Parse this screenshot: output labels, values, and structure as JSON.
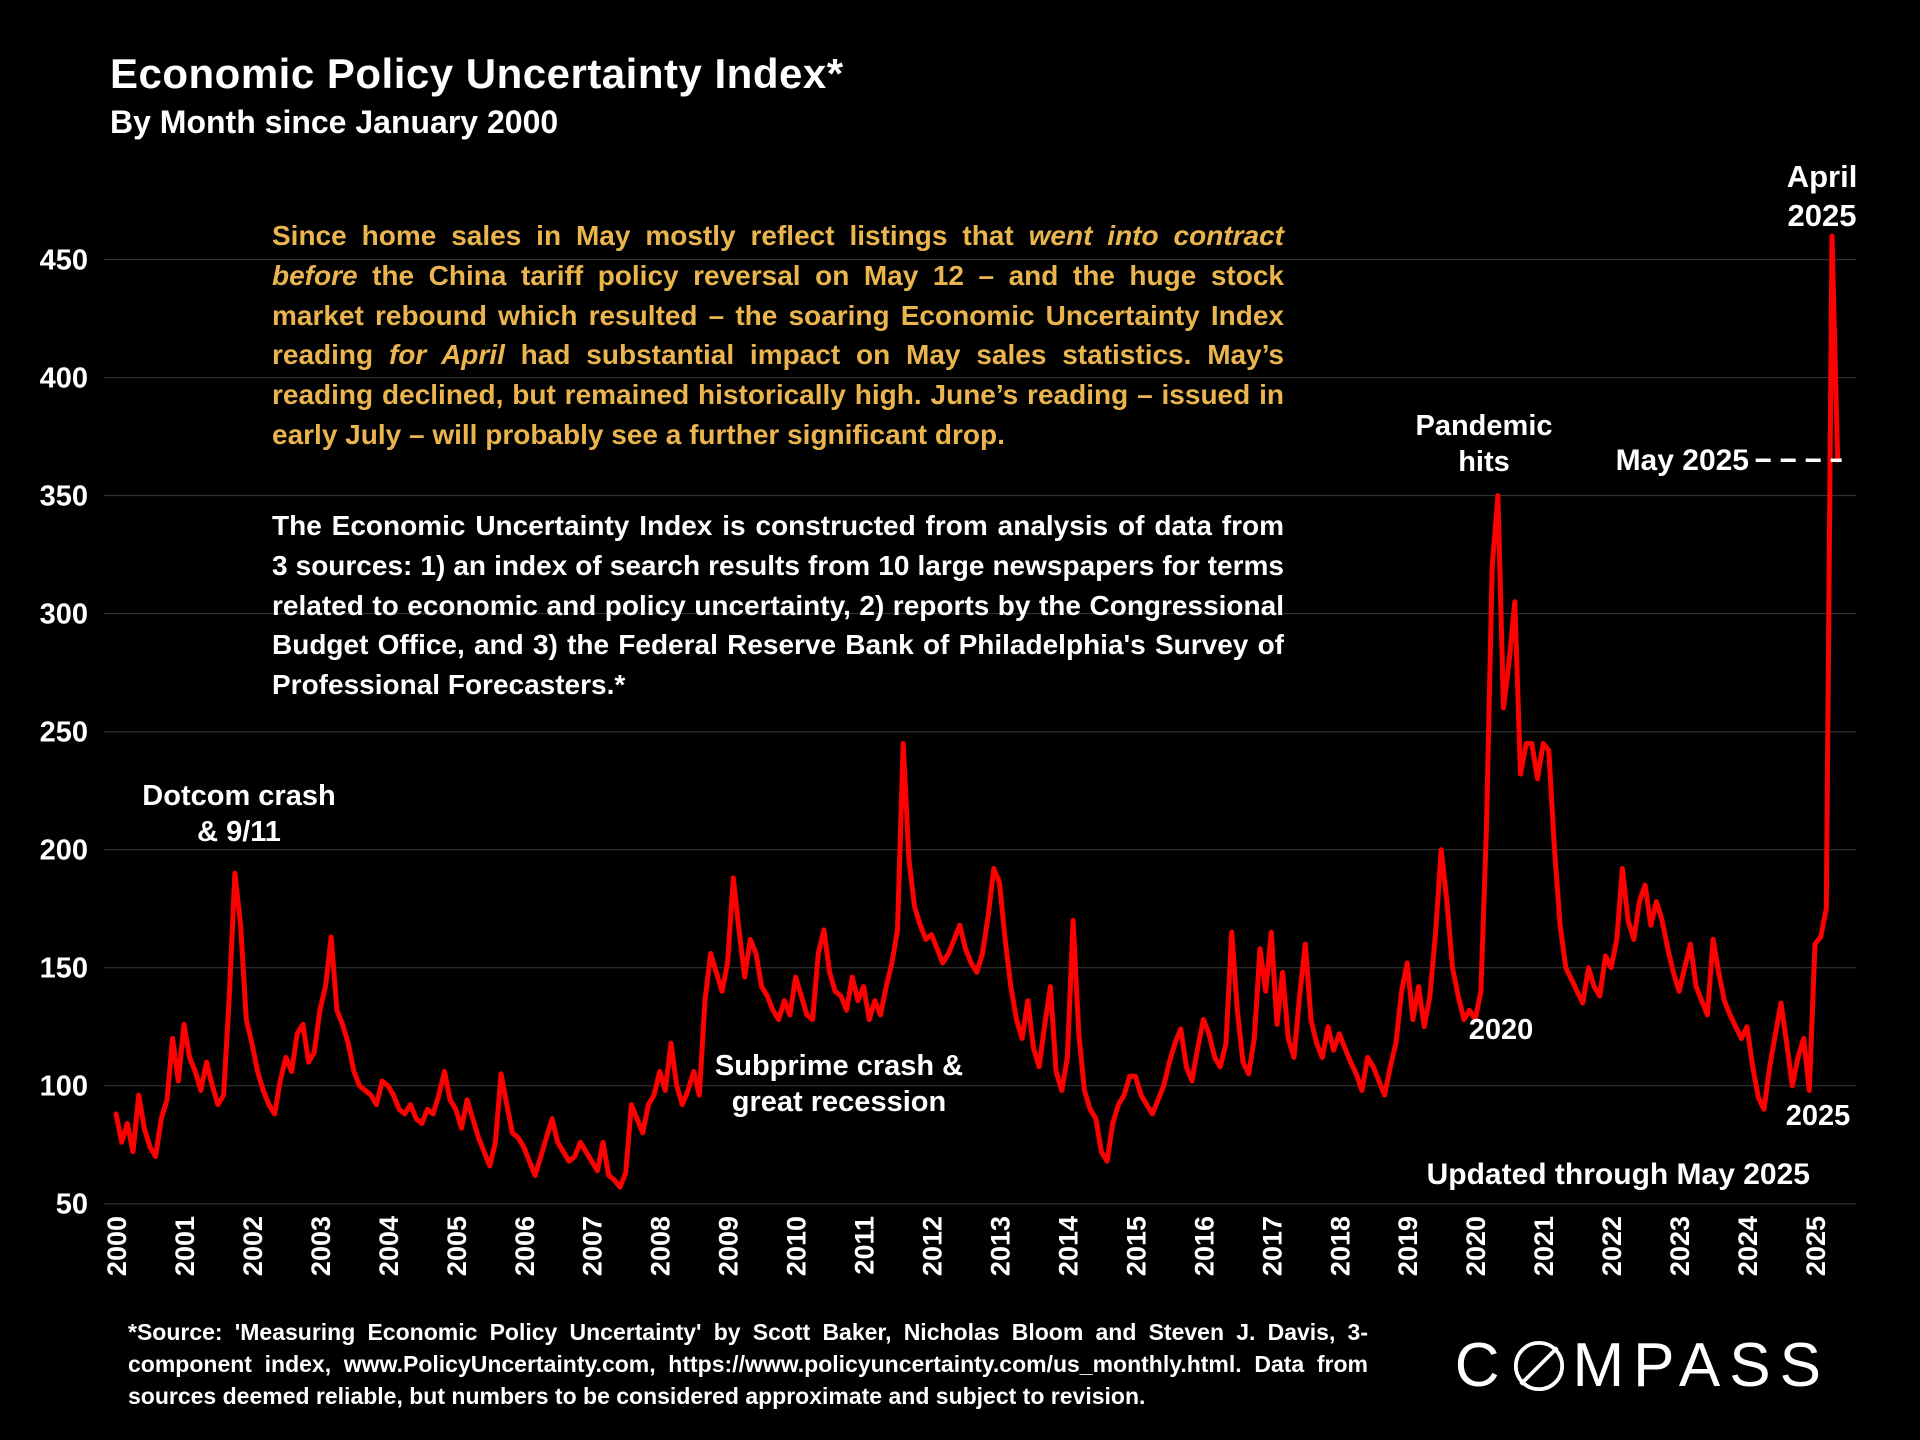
{
  "header": {
    "title": "Economic Policy Uncertainty Index*",
    "subtitle": "By Month since January 2000"
  },
  "commentary": {
    "segments": [
      {
        "text": "Since home sales in May mostly reflect listings that ",
        "italic": false
      },
      {
        "text": "went into contract before",
        "italic": true
      },
      {
        "text": " the China tariff policy reversal on May 12 – and the huge stock market rebound which resulted – the soaring Economic Uncertainty Index  reading ",
        "italic": false
      },
      {
        "text": "for April",
        "italic": true
      },
      {
        "text": " had substantial impact on May sales statistics. May’s reading declined, but remained historically high. June’s reading – issued in early July – will probably see a further significant drop.",
        "italic": false
      }
    ]
  },
  "methodology": {
    "text": "The Economic Uncertainty Index is constructed from analysis of data from 3 sources:  1) an index of search results from 10 large newspapers for terms related to economic and policy uncertainty, 2) reports by the Congressional Budget Office, and 3) the Federal Reserve Bank of Philadelphia's Survey of Professional Forecasters.*"
  },
  "annotations": {
    "dotcom": "Dotcom crash\n& 9/11",
    "subprime": "Subprime crash &\ngreat recession",
    "pandemic": "Pandemic\nhits",
    "april_2025": "April\n2025",
    "may_2025": "May 2025",
    "year_2020": "2020",
    "year_2025": "2025",
    "updated": "Updated through May 2025"
  },
  "footer": {
    "source": "*Source: 'Measuring Economic Policy Uncertainty' by Scott Baker, Nicholas Bloom and Steven J. Davis, 3-component index, www.PolicyUncertainty.com, https://www.policyuncertainty.com/us_monthly.html. Data from sources deemed reliable, but numbers to be considered approximate and subject to revision."
  },
  "logo": {
    "brand": "COMPASS",
    "left": "C",
    "right": "MPASS"
  },
  "chart_data": {
    "type": "line",
    "title": "Economic Policy Uncertainty Index*",
    "subtitle": "By Month since January 2000",
    "x_start": "2000-01",
    "x_end": "2025-05",
    "x_tick_labels": [
      "2000",
      "2001",
      "2002",
      "2003",
      "2004",
      "2005",
      "2006",
      "2007",
      "2008",
      "2009",
      "2010",
      "2011",
      "2012",
      "2013",
      "2014",
      "2015",
      "2016",
      "2017",
      "2018",
      "2019",
      "2020",
      "2021",
      "2022",
      "2023",
      "2024",
      "2025"
    ],
    "y_ticks": [
      50,
      100,
      150,
      200,
      250,
      300,
      350,
      400,
      450
    ],
    "ylim": [
      50,
      480
    ],
    "grid": true,
    "legend": "none",
    "colors": {
      "background": "#000000",
      "line": "#FE0000",
      "grid": "#3a3a3a",
      "text": "#FFFFFF",
      "accent_gold": "#EAB54E"
    },
    "notable_points": {
      "dotcom_911_peak": 190,
      "debt_ceiling_2011_peak": 245,
      "pandemic_2020_peak": 350,
      "april_2025": 460,
      "may_2025": 365
    },
    "series": [
      {
        "name": "Economic Policy Uncertainty Index (monthly)",
        "monthly_values": [
          88,
          76,
          84,
          72,
          96,
          82,
          74,
          70,
          86,
          94,
          120,
          102,
          126,
          112,
          106,
          98,
          110,
          100,
          92,
          96,
          138,
          190,
          168,
          128,
          118,
          106,
          98,
          92,
          88,
          102,
          112,
          106,
          122,
          126,
          110,
          114,
          132,
          142,
          163,
          132,
          126,
          118,
          106,
          100,
          98,
          96,
          92,
          102,
          100,
          96,
          90,
          88,
          92,
          86,
          84,
          90,
          88,
          96,
          106,
          94,
          90,
          82,
          94,
          86,
          78,
          72,
          66,
          76,
          105,
          92,
          80,
          78,
          74,
          68,
          62,
          70,
          78,
          86,
          76,
          72,
          68,
          70,
          76,
          72,
          68,
          64,
          76,
          62,
          60,
          57,
          63,
          92,
          86,
          80,
          92,
          96,
          106,
          98,
          118,
          100,
          92,
          98,
          106,
          96,
          136,
          156,
          148,
          140,
          152,
          188,
          166,
          146,
          162,
          156,
          142,
          138,
          132,
          128,
          136,
          130,
          146,
          138,
          130,
          128,
          156,
          166,
          148,
          140,
          138,
          132,
          146,
          136,
          142,
          128,
          136,
          130,
          142,
          152,
          166,
          245,
          196,
          176,
          168,
          162,
          164,
          158,
          152,
          156,
          162,
          168,
          158,
          152,
          148,
          156,
          172,
          192,
          186,
          162,
          142,
          128,
          120,
          136,
          116,
          108,
          126,
          142,
          106,
          98,
          112,
          170,
          122,
          98,
          90,
          86,
          72,
          68,
          84,
          92,
          96,
          104,
          104,
          96,
          92,
          88,
          94,
          100,
          110,
          118,
          124,
          108,
          102,
          116,
          128,
          122,
          112,
          108,
          118,
          165,
          132,
          110,
          105,
          120,
          158,
          140,
          165,
          126,
          148,
          120,
          112,
          138,
          160,
          128,
          118,
          112,
          125,
          115,
          122,
          116,
          110,
          105,
          98,
          112,
          108,
          102,
          96,
          108,
          118,
          140,
          152,
          128,
          142,
          125,
          138,
          165,
          200,
          178,
          150,
          138,
          128,
          132,
          128,
          140,
          210,
          320,
          350,
          260,
          280,
          305,
          232,
          245,
          245,
          230,
          245,
          242,
          200,
          168,
          150,
          145,
          140,
          135,
          150,
          142,
          138,
          155,
          150,
          162,
          192,
          170,
          162,
          178,
          185,
          168,
          178,
          170,
          158,
          148,
          140,
          150,
          160,
          142,
          136,
          130,
          162,
          148,
          136,
          130,
          125,
          120,
          125,
          108,
          95,
          90,
          108,
          122,
          135,
          118,
          100,
          112,
          120,
          98,
          160,
          163,
          175,
          460,
          365
        ]
      }
    ]
  }
}
